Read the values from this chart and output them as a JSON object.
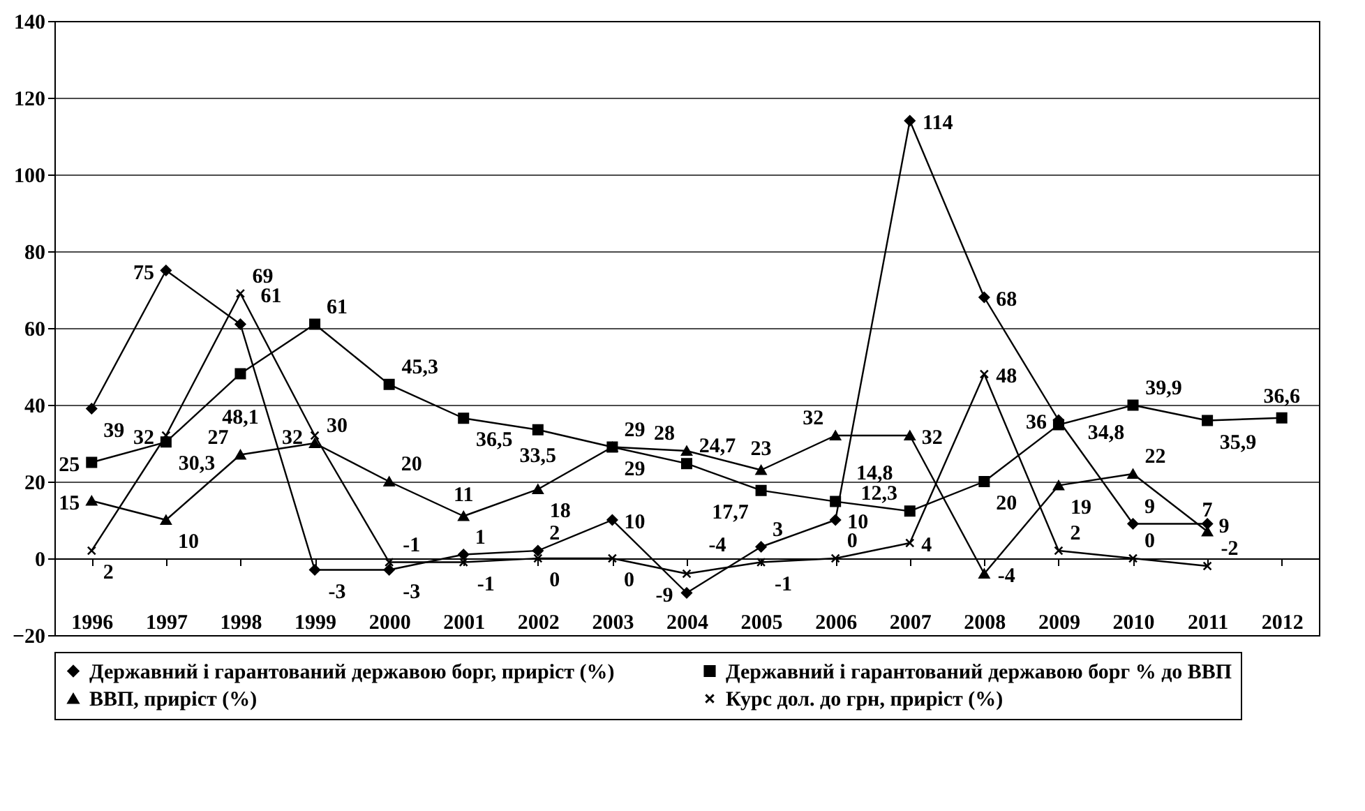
{
  "chart_data": {
    "type": "line",
    "categories": [
      "1996",
      "1997",
      "1998",
      "1999",
      "2000",
      "2001",
      "2002",
      "2003",
      "2004",
      "2005",
      "2006",
      "2007",
      "2008",
      "2009",
      "2010",
      "2011",
      "2012"
    ],
    "ylim": [
      -20,
      140
    ],
    "yticks": [
      -20,
      0,
      20,
      40,
      60,
      80,
      100,
      120,
      140
    ],
    "grid": "y",
    "legend": "bottom",
    "series": [
      {
        "name": "Державний і гарантований державою борг, приріст (%)",
        "color": "#000000",
        "marker": "diamond",
        "values": [
          39,
          75,
          61,
          -3,
          -3,
          1,
          2,
          10,
          -9,
          3,
          10,
          114,
          68,
          36,
          9,
          9,
          null
        ],
        "value_labels": [
          "39",
          "75",
          "61",
          "-3",
          "-3",
          "1",
          "2",
          "10",
          "-9",
          "3",
          "10",
          "114",
          "68",
          "36",
          "9",
          "9",
          null
        ]
      },
      {
        "name": "Державний і гарантований державою борг % до ВВП",
        "color": "#000000",
        "marker": "square",
        "values": [
          25,
          30.3,
          48.1,
          61,
          45.3,
          36.5,
          33.5,
          29,
          24.7,
          17.7,
          14.8,
          12.3,
          20,
          34.8,
          39.9,
          35.9,
          36.6
        ],
        "value_labels": [
          "25",
          "30,3",
          "48,1",
          "61",
          "45,3",
          "36,5",
          "33,5",
          "29",
          "24,7",
          "17,7",
          "14,8",
          "12,3",
          "20",
          "34,8",
          "39,9",
          "35,9",
          "36,6"
        ]
      },
      {
        "name": "ВВП, приріст (%)",
        "color": "#000000",
        "marker": "triangle",
        "values": [
          15,
          10,
          27,
          30,
          20,
          11,
          18,
          29,
          28,
          23,
          32,
          32,
          -4,
          19,
          22,
          7,
          null
        ],
        "value_labels": [
          "15",
          "10",
          "27",
          "30",
          "20",
          "11",
          "18",
          "29",
          "28",
          "23",
          "32",
          "32",
          "-4",
          "19",
          "22",
          "7",
          null
        ]
      },
      {
        "name": "Курс дол. до грн, приріст (%)",
        "color": "#000000",
        "marker": "cross",
        "values": [
          2,
          32,
          69,
          32,
          -1,
          -1,
          0,
          0,
          -4,
          -1,
          0,
          4,
          48,
          2,
          0,
          -2,
          null
        ],
        "value_labels": [
          "2",
          "32",
          "69",
          "32",
          "-1",
          "-1",
          "0",
          "0",
          "-4",
          "-1",
          "0",
          "4",
          "48",
          "2",
          "0",
          "-2",
          null
        ]
      }
    ]
  }
}
